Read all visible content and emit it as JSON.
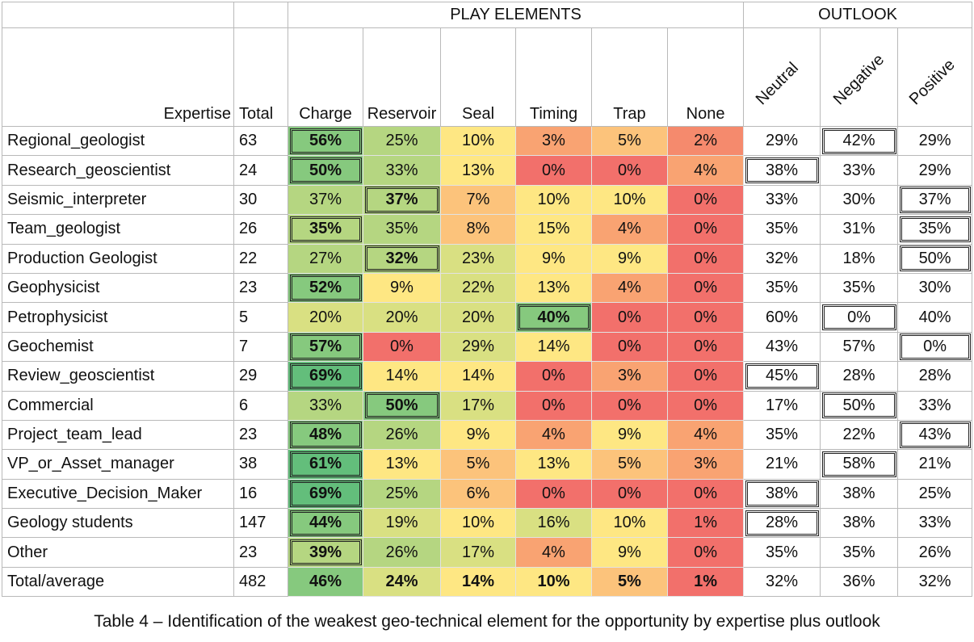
{
  "group_headers": {
    "play_elements": "PLAY ELEMENTS",
    "outlook": "OUTLOOK"
  },
  "columns": {
    "expertise": "Expertise",
    "total": "Total",
    "charge": "Charge",
    "reservoir": "Reservoir",
    "seal": "Seal",
    "timing": "Timing",
    "trap": "Trap",
    "none": "None",
    "neutral": "Neutral",
    "negative": "Negative",
    "positive": "Positive"
  },
  "rows": [
    {
      "name": "Regional_geologist",
      "total": "63",
      "charge": "56%",
      "reservoir": "25%",
      "seal": "10%",
      "timing": "3%",
      "trap": "5%",
      "none": "2%",
      "neutral": "29%",
      "negative": "42%",
      "positive": "29%"
    },
    {
      "name": "Research_geoscientist",
      "total": "24",
      "charge": "50%",
      "reservoir": "33%",
      "seal": "13%",
      "timing": "0%",
      "trap": "0%",
      "none": "4%",
      "neutral": "38%",
      "negative": "33%",
      "positive": "29%"
    },
    {
      "name": "Seismic_interpreter",
      "total": "30",
      "charge": "37%",
      "reservoir": "37%",
      "seal": "7%",
      "timing": "10%",
      "trap": "10%",
      "none": "0%",
      "neutral": "33%",
      "negative": "30%",
      "positive": "37%"
    },
    {
      "name": "Team_geologist",
      "total": "26",
      "charge": "35%",
      "reservoir": "35%",
      "seal": "8%",
      "timing": "15%",
      "trap": "4%",
      "none": "0%",
      "neutral": "35%",
      "negative": "31%",
      "positive": "35%"
    },
    {
      "name": "Production Geologist",
      "total": "22",
      "charge": "27%",
      "reservoir": "32%",
      "seal": "23%",
      "timing": "9%",
      "trap": "9%",
      "none": "0%",
      "neutral": "32%",
      "negative": "18%",
      "positive": "50%"
    },
    {
      "name": "Geophysicist",
      "total": "23",
      "charge": "52%",
      "reservoir": "9%",
      "seal": "22%",
      "timing": "13%",
      "trap": "4%",
      "none": "0%",
      "neutral": "35%",
      "negative": "35%",
      "positive": "30%"
    },
    {
      "name": "Petrophysicist",
      "total": "5",
      "charge": "20%",
      "reservoir": "20%",
      "seal": "20%",
      "timing": "40%",
      "trap": "0%",
      "none": "0%",
      "neutral": "60%",
      "negative": "0%",
      "positive": "40%"
    },
    {
      "name": "Geochemist",
      "total": "7",
      "charge": "57%",
      "reservoir": "0%",
      "seal": "29%",
      "timing": "14%",
      "trap": "0%",
      "none": "0%",
      "neutral": "43%",
      "negative": "57%",
      "positive": "0%"
    },
    {
      "name": "Review_geoscientist",
      "total": "29",
      "charge": "69%",
      "reservoir": "14%",
      "seal": "14%",
      "timing": "0%",
      "trap": "3%",
      "none": "0%",
      "neutral": "45%",
      "negative": "28%",
      "positive": "28%"
    },
    {
      "name": "Commercial",
      "total": "6",
      "charge": "33%",
      "reservoir": "50%",
      "seal": "17%",
      "timing": "0%",
      "trap": "0%",
      "none": "0%",
      "neutral": "17%",
      "negative": "50%",
      "positive": "33%"
    },
    {
      "name": "Project_team_lead",
      "total": "23",
      "charge": "48%",
      "reservoir": "26%",
      "seal": "9%",
      "timing": "4%",
      "trap": "9%",
      "none": "4%",
      "neutral": "35%",
      "negative": "22%",
      "positive": "43%"
    },
    {
      "name": "VP_or_Asset_manager",
      "total": "38",
      "charge": "61%",
      "reservoir": "13%",
      "seal": "5%",
      "timing": "13%",
      "trap": "5%",
      "none": "3%",
      "neutral": "21%",
      "negative": "58%",
      "positive": "21%"
    },
    {
      "name": "Executive_Decision_Maker",
      "total": "16",
      "charge": "69%",
      "reservoir": "25%",
      "seal": "6%",
      "timing": "0%",
      "trap": "0%",
      "none": "0%",
      "neutral": "38%",
      "negative": "38%",
      "positive": "25%"
    },
    {
      "name": "Geology students",
      "total": "147",
      "charge": "44%",
      "reservoir": "19%",
      "seal": "10%",
      "timing": "16%",
      "trap": "10%",
      "none": "1%",
      "neutral": "28%",
      "negative": "38%",
      "positive": "33%"
    },
    {
      "name": "Other",
      "total": "23",
      "charge": "39%",
      "reservoir": "26%",
      "seal": "17%",
      "timing": "4%",
      "trap": "9%",
      "none": "0%",
      "neutral": "35%",
      "negative": "35%",
      "positive": "26%"
    },
    {
      "name": "Total/average",
      "total": "482",
      "charge": "46%",
      "reservoir": "24%",
      "seal": "14%",
      "timing": "10%",
      "trap": "5%",
      "none": "1%",
      "neutral": "32%",
      "negative": "36%",
      "positive": "32%"
    }
  ],
  "colors": {
    "c_green_dark": "#63be7b",
    "c_green": "#86c97e",
    "c_green_light": "#b5d681",
    "c_yellow_green": "#d9e082",
    "c_yellow": "#fee783",
    "c_orange_light": "#fcc37b",
    "c_orange": "#f9a372",
    "c_red_orange": "#f58a6d",
    "c_red": "#f2706b",
    "c_red_dark": "#f8696b"
  },
  "caption": "Table 4 – Identification of the weakest geo-technical element for the opportunity by expertise plus outlook"
}
